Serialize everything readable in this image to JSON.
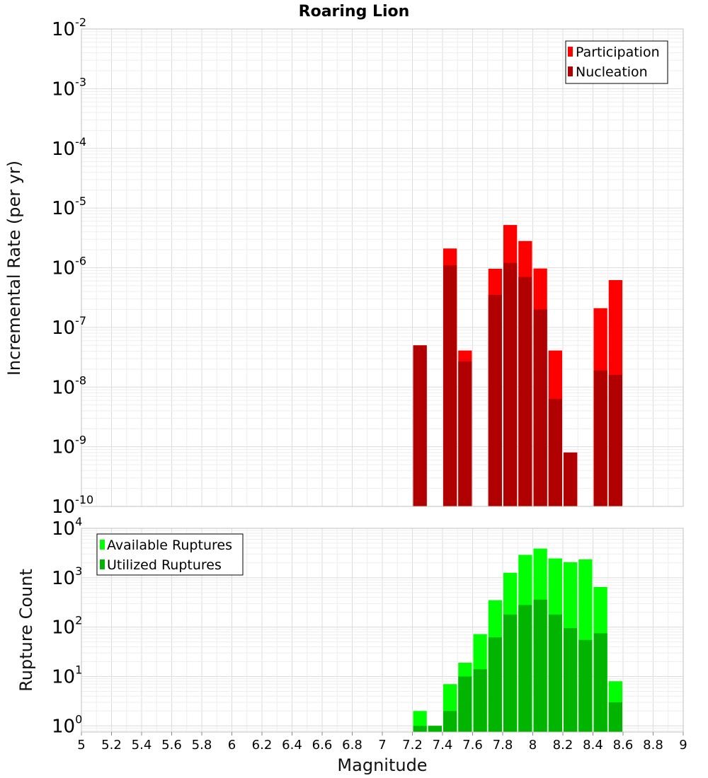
{
  "chart_data": [
    {
      "type": "bar",
      "title": "Roaring Lion",
      "xlabel": "Magnitude",
      "ylabel": "Incremental Rate (per yr)",
      "yscale": "log",
      "xlim": [
        5,
        9
      ],
      "ylim": [
        1e-10,
        0.01
      ],
      "bin_width": 0.1,
      "grid": true,
      "legend": {
        "position": "top-right"
      },
      "x": [
        7.25,
        7.45,
        7.55,
        7.75,
        7.85,
        7.95,
        8.05,
        8.15,
        8.25,
        8.45,
        8.55
      ],
      "series": [
        {
          "name": "Participation",
          "color": "#ff0000",
          "values": [
            5e-08,
            2.1e-06,
            4.1e-08,
            9.6e-07,
            5.2e-06,
            2.8e-06,
            9.7e-07,
            4.1e-08,
            8e-10,
            2.1e-07,
            6.2e-07
          ]
        },
        {
          "name": "Nucleation",
          "color": "#b00000",
          "values": [
            5e-08,
            1.1e-06,
            2.7e-08,
            3.5e-07,
            1.2e-06,
            7e-07,
            2e-07,
            6.3e-09,
            8e-10,
            1.9e-08,
            1.6e-08
          ]
        }
      ]
    },
    {
      "type": "bar",
      "title": "",
      "xlabel": "Magnitude",
      "ylabel": "Rupture Count",
      "yscale": "log",
      "xlim": [
        5,
        9
      ],
      "ylim": [
        0.75,
        10000.0
      ],
      "bin_width": 0.1,
      "grid": true,
      "legend": {
        "position": "top-left"
      },
      "x": [
        7.25,
        7.35,
        7.45,
        7.55,
        7.65,
        7.75,
        7.85,
        7.95,
        8.05,
        8.15,
        8.25,
        8.35,
        8.45,
        8.55
      ],
      "series": [
        {
          "name": "Available Ruptures",
          "color": "#00ff00",
          "values": [
            2,
            1,
            7,
            19,
            72,
            350,
            1260,
            2900,
            3900,
            2460,
            2060,
            2350,
            650,
            8
          ]
        },
        {
          "name": "Utilized Ruptures",
          "color": "#00b400",
          "values": [
            1,
            1,
            2,
            10,
            14,
            62,
            180,
            280,
            360,
            180,
            95,
            55,
            75,
            3
          ]
        }
      ]
    }
  ],
  "x_ticks": [
    "5",
    "5.2",
    "5.4",
    "5.6",
    "5.8",
    "6",
    "6.2",
    "6.4",
    "6.6",
    "6.8",
    "7",
    "7.2",
    "7.4",
    "7.6",
    "7.8",
    "8",
    "8.2",
    "8.4",
    "8.6",
    "8.8",
    "9"
  ],
  "top_y_ticks": [
    {
      "base": "10",
      "exp": "-2",
      "value": 0.01
    },
    {
      "base": "10",
      "exp": "-3",
      "value": 0.001
    },
    {
      "base": "10",
      "exp": "-4",
      "value": 0.0001
    },
    {
      "base": "10",
      "exp": "-5",
      "value": 1e-05
    },
    {
      "base": "10",
      "exp": "-6",
      "value": 1e-06
    },
    {
      "base": "10",
      "exp": "-7",
      "value": 1e-07
    },
    {
      "base": "10",
      "exp": "-8",
      "value": 1e-08
    },
    {
      "base": "10",
      "exp": "-9",
      "value": 1e-09
    },
    {
      "base": "10",
      "exp": "-10",
      "value": 1e-10
    }
  ],
  "bottom_y_ticks": [
    {
      "base": "10",
      "exp": "4",
      "value": 10000.0
    },
    {
      "base": "10",
      "exp": "3",
      "value": 1000.0
    },
    {
      "base": "10",
      "exp": "2",
      "value": 100.0
    },
    {
      "base": "10",
      "exp": "1",
      "value": 10.0
    },
    {
      "base": "10",
      "exp": "0",
      "value": 1
    }
  ]
}
